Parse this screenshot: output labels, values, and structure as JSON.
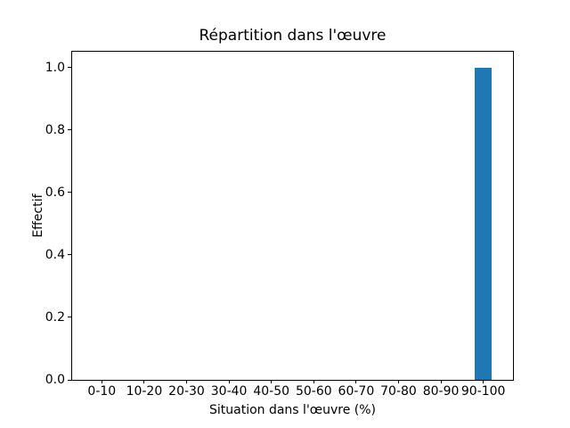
{
  "chart_data": {
    "type": "bar",
    "title": "Répartition dans l'œuvre",
    "xlabel": "Situation dans l'œuvre (%)",
    "ylabel": "Effectif",
    "categories": [
      "0-10",
      "10-20",
      "20-30",
      "30-40",
      "40-50",
      "50-60",
      "60-70",
      "70-80",
      "80-90",
      "90-100"
    ],
    "values": [
      0,
      0,
      0,
      0,
      0,
      0,
      0,
      0,
      0,
      1
    ],
    "yticks": [
      0.0,
      0.2,
      0.4,
      0.6,
      0.8,
      1.0
    ],
    "ytick_labels": [
      "0.0",
      "0.2",
      "0.4",
      "0.6",
      "0.8",
      "1.0"
    ],
    "xlim": [
      -0.7,
      9.7
    ],
    "ylim": [
      0,
      1.05
    ],
    "bar_width": 0.4,
    "bar_color": "#1f77b4",
    "background_color": "#ffffff",
    "spine_color": "#000000",
    "grid": false,
    "legend": "none"
  }
}
